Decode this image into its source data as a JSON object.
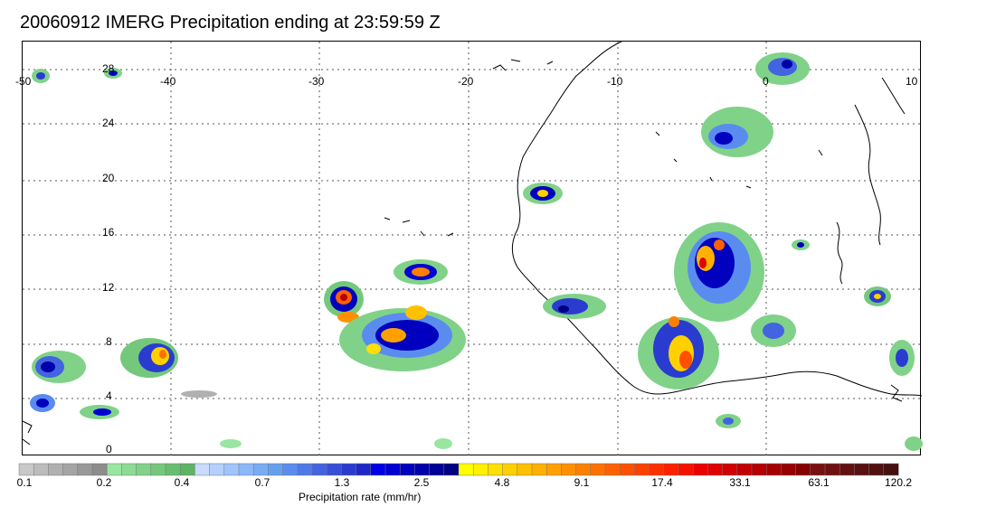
{
  "title": "20060912 IMERG Precipitation ending at 23:59:59 Z",
  "map": {
    "lon_labels": [
      "-50",
      "-40",
      "-30",
      "-20",
      "-10",
      "0",
      "10"
    ],
    "lat_labels": [
      "28",
      "24",
      "20",
      "16",
      "12",
      "8",
      "4",
      "0"
    ]
  },
  "colorbar": {
    "title": "Precipitation rate (mm/hr)",
    "tick_labels": [
      "0.1",
      "0.2",
      "0.4",
      "0.7",
      "1.3",
      "2.5",
      "4.8",
      "9.1",
      "17.4",
      "33.1",
      "63.1",
      "120.2"
    ],
    "colors": [
      "#c8c8c8",
      "#bcbcbc",
      "#b0b0b0",
      "#a4a4a4",
      "#989898",
      "#8c8c8c",
      "#98e6a0",
      "#8cdc94",
      "#80d288",
      "#74c87c",
      "#68be70",
      "#5cb464",
      "#c8dcff",
      "#b4d0ff",
      "#a0c4ff",
      "#8cb8fa",
      "#78acf5",
      "#64a0f0",
      "#5a8cf0",
      "#4e7ae8",
      "#4264e0",
      "#3650d8",
      "#2a3cd0",
      "#1e28c8",
      "#0000e6",
      "#0000d2",
      "#0000be",
      "#0000aa",
      "#000096",
      "#000082",
      "#ffff00",
      "#fff000",
      "#ffe000",
      "#ffd000",
      "#ffc000",
      "#ffb000",
      "#ffa000",
      "#ff9000",
      "#ff8000",
      "#ff7000",
      "#ff6000",
      "#ff5000",
      "#ff4000",
      "#ff3000",
      "#ff2000",
      "#f51000",
      "#eb0000",
      "#e10000",
      "#d20000",
      "#c30000",
      "#b40000",
      "#a50000",
      "#960000",
      "#870000",
      "#781010",
      "#6e1010",
      "#641010",
      "#5a1010",
      "#501010",
      "#461010"
    ]
  }
}
